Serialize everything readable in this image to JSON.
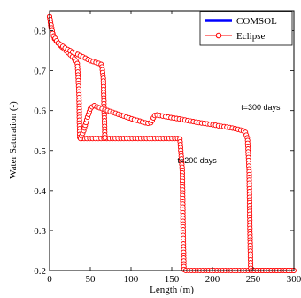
{
  "chart_data": {
    "type": "line",
    "xlabel": "Length (m)",
    "ylabel": "Water Saturation (-)",
    "xlim": [
      0,
      300
    ],
    "ylim": [
      0.2,
      0.85
    ],
    "xticks": [
      0,
      50,
      100,
      150,
      200,
      250,
      300
    ],
    "xtick_labels": [
      "0",
      "50",
      "100",
      "150",
      "200",
      "250",
      "300"
    ],
    "yticks": [
      0.2,
      0.3,
      0.4,
      0.5,
      0.6,
      0.7,
      0.8
    ],
    "ytick_labels": [
      "0.2",
      "0.3",
      "0.4",
      "0.5",
      "0.6",
      "0.7",
      "0.8"
    ],
    "grid": false,
    "legend_position": "top-right",
    "series": [
      {
        "name": "COMSOL",
        "color": "#0000ff",
        "style": "solid-thick",
        "curves": [
          {
            "x": [
              0,
              2,
              6,
              12,
              20,
              28,
              34,
              36,
              37,
              38,
              40,
              46,
              52,
              56,
              60,
              64,
              66,
              67,
              68,
              70,
              80,
              95,
              110,
              125,
              130,
              140,
              150,
              160,
              163,
              164,
              165,
              166,
              300
            ],
            "y": [
              0.835,
              0.805,
              0.78,
              0.765,
              0.75,
              0.735,
              0.72,
              0.65,
              0.53,
              0.53,
              0.53,
              0.53,
              0.53,
              0.53,
              0.53,
              0.53,
              0.53,
              0.53,
              0.53,
              0.53,
              0.53,
              0.53,
              0.53,
              0.53,
              0.53,
              0.53,
              0.53,
              0.53,
              0.45,
              0.3,
              0.2,
              0.2,
              0.2
            ]
          },
          {
            "x": [
              0,
              4,
              10,
              20,
              30,
              40,
              50,
              58,
              64,
              66,
              67,
              68,
              69,
              70
            ],
            "y": [
              0.835,
              0.79,
              0.77,
              0.755,
              0.745,
              0.735,
              0.725,
              0.72,
              0.715,
              0.68,
              0.6,
              0.53,
              0.53,
              0.53
            ]
          },
          {
            "x": [
              38,
              42,
              46,
              50,
              54,
              60,
              70,
              80,
              90,
              100,
              110,
              120,
              125,
              128,
              130,
              140,
              150,
              160,
              170,
              180,
              190,
              200,
              210,
              220,
              230,
              240,
              243,
              245,
              246,
              247,
              248,
              250,
              260,
              280,
              300
            ],
            "y": [
              0.53,
              0.55,
              0.58,
              0.605,
              0.613,
              0.608,
              0.601,
              0.594,
              0.587,
              0.58,
              0.574,
              0.568,
              0.57,
              0.585,
              0.59,
              0.586,
              0.582,
              0.579,
              0.575,
              0.571,
              0.568,
              0.565,
              0.561,
              0.558,
              0.554,
              0.548,
              0.53,
              0.45,
              0.3,
              0.2,
              0.2,
              0.2,
              0.2,
              0.2,
              0.2
            ]
          }
        ]
      },
      {
        "name": "Eclipse",
        "color": "#ff0000",
        "style": "circles",
        "curves": [
          {
            "x": [
              0,
              2,
              6,
              12,
              20,
              28,
              34,
              36,
              37,
              38,
              40,
              46,
              52,
              56,
              60,
              64,
              66,
              67,
              68,
              70,
              80,
              95,
              110,
              125,
              130,
              140,
              150,
              160,
              163,
              164,
              165,
              166,
              300
            ],
            "y": [
              0.835,
              0.805,
              0.78,
              0.765,
              0.75,
              0.735,
              0.72,
              0.65,
              0.53,
              0.53,
              0.53,
              0.53,
              0.53,
              0.53,
              0.53,
              0.53,
              0.53,
              0.53,
              0.53,
              0.53,
              0.53,
              0.53,
              0.53,
              0.53,
              0.53,
              0.53,
              0.53,
              0.53,
              0.45,
              0.3,
              0.2,
              0.2,
              0.2
            ]
          },
          {
            "x": [
              0,
              4,
              10,
              20,
              30,
              40,
              50,
              58,
              64,
              66,
              67,
              68,
              69,
              70
            ],
            "y": [
              0.835,
              0.79,
              0.77,
              0.755,
              0.745,
              0.735,
              0.725,
              0.72,
              0.715,
              0.68,
              0.6,
              0.53,
              0.53,
              0.53
            ]
          },
          {
            "x": [
              38,
              42,
              46,
              50,
              54,
              60,
              70,
              80,
              90,
              100,
              110,
              120,
              125,
              128,
              130,
              140,
              150,
              160,
              170,
              180,
              190,
              200,
              210,
              220,
              230,
              240,
              243,
              245,
              246,
              247,
              248,
              250,
              260,
              280,
              300
            ],
            "y": [
              0.53,
              0.55,
              0.58,
              0.605,
              0.613,
              0.608,
              0.601,
              0.594,
              0.587,
              0.58,
              0.574,
              0.568,
              0.57,
              0.585,
              0.59,
              0.586,
              0.582,
              0.579,
              0.575,
              0.571,
              0.568,
              0.565,
              0.561,
              0.558,
              0.554,
              0.548,
              0.53,
              0.45,
              0.3,
              0.2,
              0.2,
              0.2,
              0.2,
              0.2,
              0.2
            ]
          }
        ]
      }
    ],
    "annotations": [
      {
        "text": "t=300 days",
        "x": 235,
        "y": 0.602
      },
      {
        "text": "t=200 days",
        "x": 157,
        "y": 0.468
      }
    ]
  }
}
